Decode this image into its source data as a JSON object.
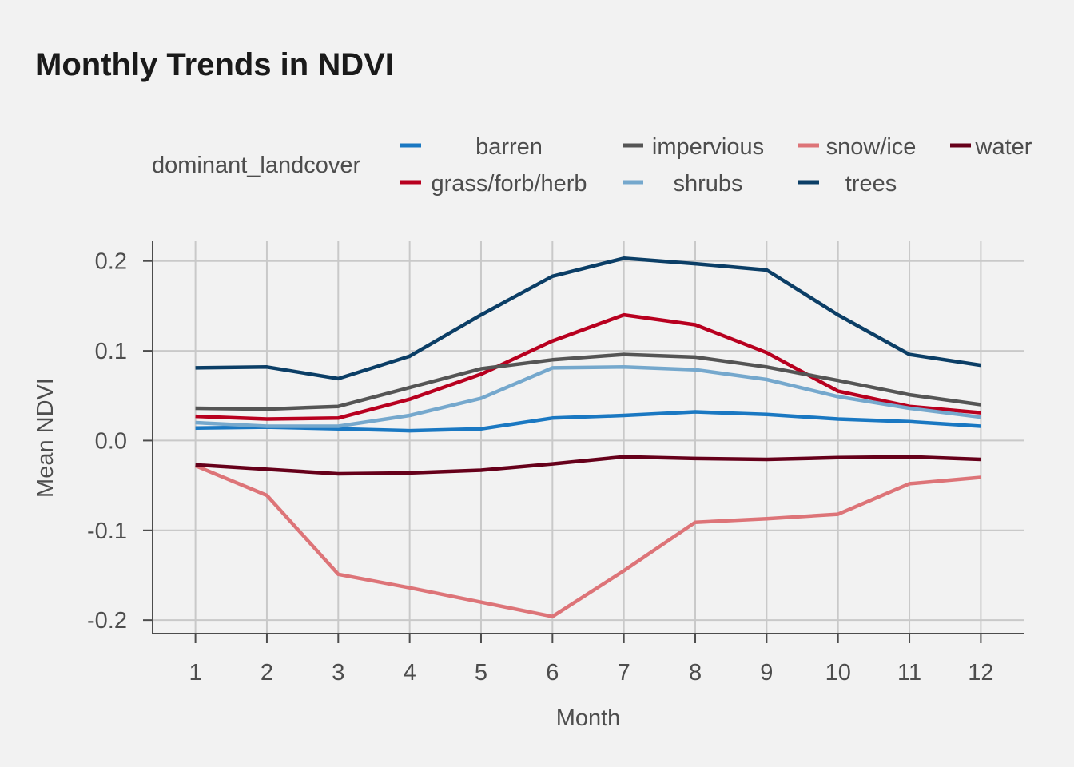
{
  "chart_data": {
    "type": "line",
    "title": "Monthly Trends in NDVI",
    "xlabel": "Month",
    "ylabel": "Mean NDVI",
    "legend_title": "dominant_landcover",
    "legend_position": "top",
    "grid": true,
    "xlim": [
      0.4,
      12.6
    ],
    "ylim": [
      -0.215,
      0.222
    ],
    "x": [
      1,
      2,
      3,
      4,
      5,
      6,
      7,
      8,
      9,
      10,
      11,
      12
    ],
    "x_ticks": [
      "1",
      "2",
      "3",
      "4",
      "5",
      "6",
      "7",
      "8",
      "9",
      "10",
      "11",
      "12"
    ],
    "y_ticks": [
      {
        "value": 0.2,
        "label": "0.2"
      },
      {
        "value": 0.1,
        "label": "0.1"
      },
      {
        "value": 0.0,
        "label": "0.0"
      },
      {
        "value": -0.1,
        "label": "-0.1"
      },
      {
        "value": -0.2,
        "label": "-0.2"
      }
    ],
    "series": [
      {
        "name": "barren",
        "color": "#1a78c2",
        "values": [
          0.014,
          0.015,
          0.013,
          0.011,
          0.013,
          0.025,
          0.028,
          0.032,
          0.029,
          0.024,
          0.021,
          0.016
        ]
      },
      {
        "name": "grass/forb/herb",
        "color": "#b8001f",
        "values": [
          0.027,
          0.024,
          0.025,
          0.046,
          0.074,
          0.111,
          0.14,
          0.129,
          0.098,
          0.055,
          0.038,
          0.031
        ]
      },
      {
        "name": "impervious",
        "color": "#555555",
        "values": [
          0.036,
          0.035,
          0.038,
          0.059,
          0.08,
          0.09,
          0.096,
          0.093,
          0.082,
          0.067,
          0.051,
          0.04
        ]
      },
      {
        "name": "shrubs",
        "color": "#75a8cd",
        "values": [
          0.02,
          0.016,
          0.016,
          0.028,
          0.047,
          0.081,
          0.082,
          0.079,
          0.068,
          0.049,
          0.036,
          0.026
        ]
      },
      {
        "name": "snow/ice",
        "color": "#dd7478",
        "values": [
          -0.028,
          -0.061,
          -0.149,
          -0.164,
          -0.18,
          -0.196,
          -0.145,
          -0.091,
          -0.087,
          -0.082,
          -0.048,
          -0.041
        ]
      },
      {
        "name": "trees",
        "color": "#0b3e66",
        "values": [
          0.081,
          0.082,
          0.069,
          0.094,
          0.14,
          0.183,
          0.203,
          0.197,
          0.19,
          0.14,
          0.096,
          0.084
        ]
      },
      {
        "name": "water",
        "color": "#66001a",
        "values": [
          -0.027,
          -0.032,
          -0.037,
          -0.036,
          -0.033,
          -0.026,
          -0.018,
          -0.02,
          -0.021,
          -0.019,
          -0.018,
          -0.021
        ]
      }
    ]
  }
}
